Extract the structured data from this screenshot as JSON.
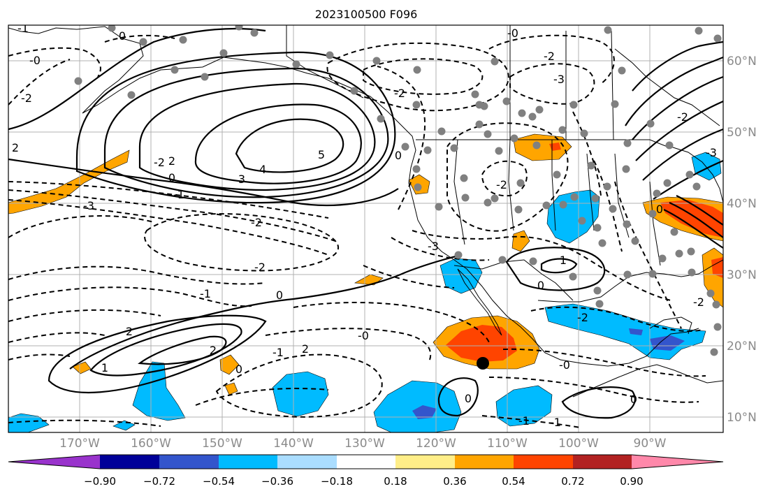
{
  "title": "2023100500 F096",
  "lon_ticks": [
    "170°W",
    "160°W",
    "150°W",
    "140°W",
    "130°W",
    "120°W",
    "110°W",
    "100°W",
    "90°W"
  ],
  "lat_ticks": [
    "60°N",
    "50°N",
    "40°N",
    "30°N",
    "20°N",
    "10°N"
  ],
  "colorbar": {
    "ticks": [
      "−0.90",
      "−0.72",
      "−0.54",
      "−0.36",
      "−0.18",
      "0.18",
      "0.36",
      "0.54",
      "0.72",
      "0.90"
    ],
    "colors": [
      "#9933cc",
      "#000099",
      "#3355cc",
      "#00bbff",
      "#aaddff",
      "#ffffff",
      "#ffee88",
      "#ffa500",
      "#ff4400",
      "#b22222",
      "#ff88aa"
    ]
  },
  "contour_labels": [
    "-1",
    "0",
    "-0",
    "-2",
    "2",
    "3",
    "-3",
    "4",
    "5",
    "-2",
    "0",
    "-1",
    "-2",
    "-2",
    "-1",
    "2",
    "0",
    "0",
    "2",
    "1",
    "2",
    "0",
    "-1",
    "-2",
    "-3",
    "-2",
    "-2",
    "-1",
    "1",
    "0",
    "-2",
    "0",
    "0",
    "-1",
    "-0",
    "-2",
    "0",
    "-3",
    "2",
    "-0",
    "-3",
    "-2",
    "-0"
  ],
  "markers": {
    "station_color": "#808080",
    "storm_color": "#000000"
  }
}
